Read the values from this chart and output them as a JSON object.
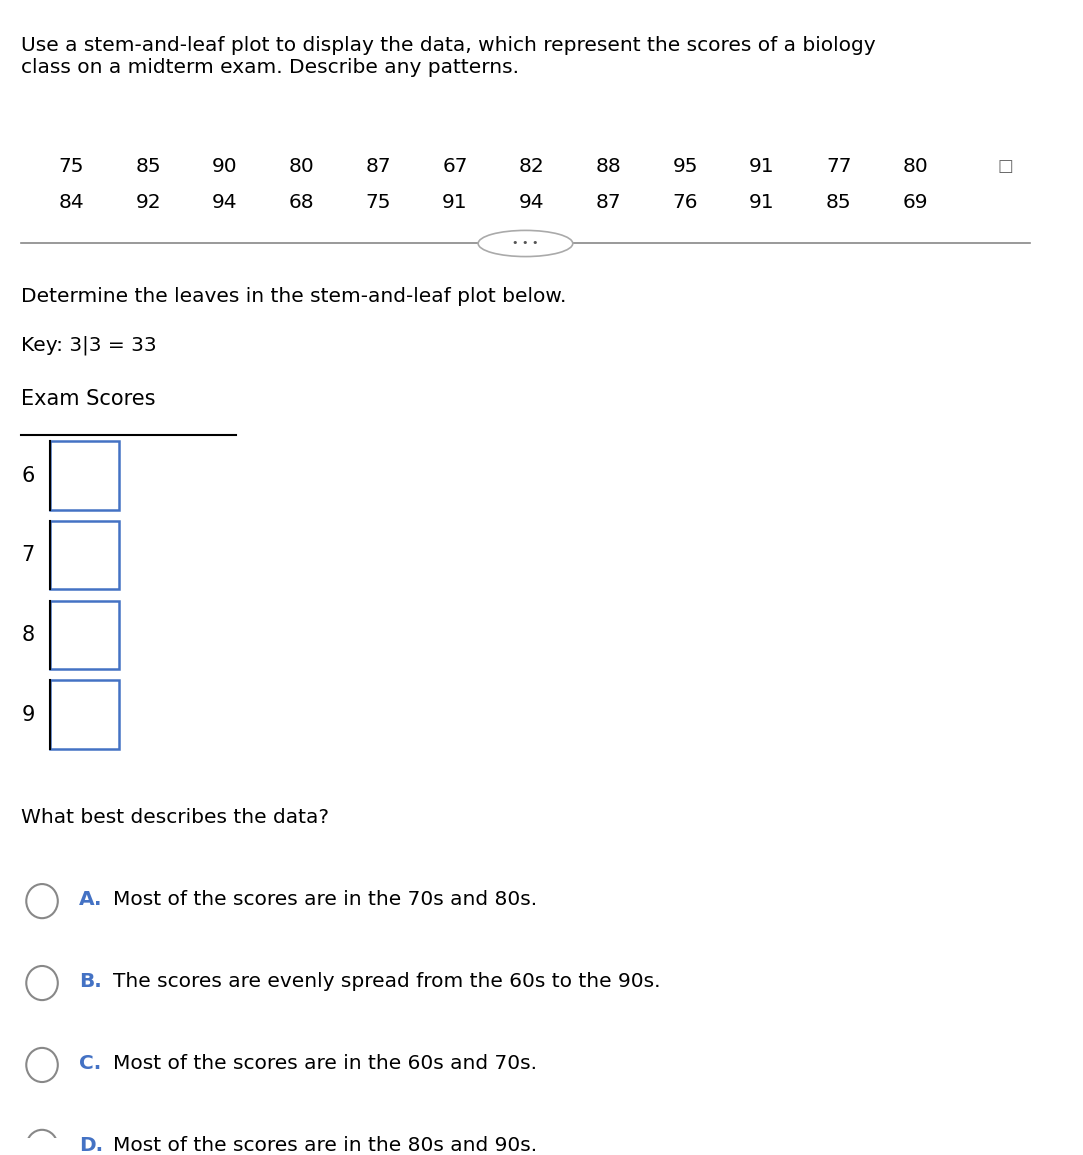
{
  "title_text": "Use a stem-and-leaf plot to display the data, which represent the scores of a biology\nclass on a midterm exam. Describe any patterns.",
  "data_row1": [
    75,
    85,
    90,
    80,
    87,
    67,
    82,
    88,
    95,
    91,
    77,
    80
  ],
  "data_row2": [
    84,
    92,
    94,
    68,
    75,
    91,
    94,
    87,
    76,
    91,
    85,
    69
  ],
  "divider_text": "• • •",
  "instruction_text": "Determine the leaves in the stem-and-leaf plot below.",
  "key_text": "Key: 3|3 = 33",
  "plot_title": "Exam Scores",
  "stems": [
    "6",
    "7",
    "8",
    "9"
  ],
  "bg_color": "#ffffff",
  "text_color": "#000000",
  "box_color": "#4472c4",
  "options": [
    {
      "label": "A.",
      "text": "Most of the scores are in the 70s and 80s."
    },
    {
      "label": "B.",
      "text": "The scores are evenly spread from the 60s to the 90s."
    },
    {
      "label": "C.",
      "text": "Most of the scores are in the 60s and 70s."
    },
    {
      "label": "D.",
      "text": "Most of the scores are in the 80s and 90s."
    }
  ],
  "question_text": "What best describes the data?"
}
